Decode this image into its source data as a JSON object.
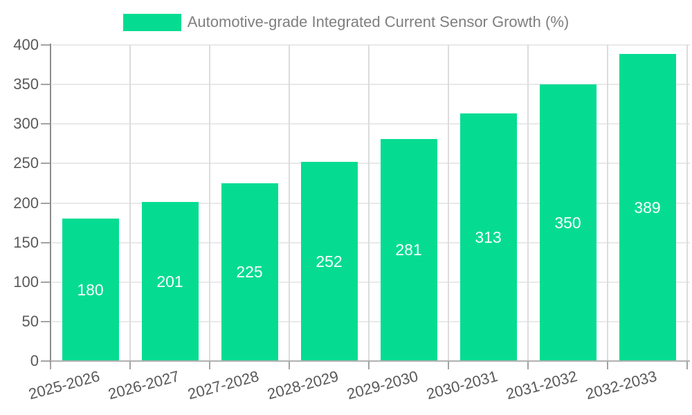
{
  "chart_data": {
    "type": "bar",
    "title": "Automotive-grade Integrated Current Sensor Growth (%)",
    "categories": [
      "2025-2026",
      "2026-2027",
      "2027-2028",
      "2028-2029",
      "2029-2030",
      "2030-2031",
      "2031-2032",
      "2032-2033"
    ],
    "values": [
      180,
      201,
      225,
      252,
      281,
      313,
      350,
      389
    ],
    "xlabel": "",
    "ylabel": "",
    "ylim": [
      0,
      400
    ],
    "yticks": [
      0,
      50,
      100,
      150,
      200,
      250,
      300,
      350,
      400
    ],
    "grid": true,
    "legend_position": "top-center",
    "x_label_rotation_deg": -15,
    "bar_color": "#05dc92",
    "value_label_color": "#ffffff"
  },
  "colors": {
    "bar": "#05dc92",
    "grid_horizontal": "#e9e9e9",
    "grid_vertical": "#dcdcdc",
    "y_axis": "#8c8c8c",
    "x_axis": "#b0b0b0",
    "tick": "#a3a3a3",
    "tick_text": "#595959",
    "legend_text": "#7f7f7f",
    "background": "#ffffff"
  }
}
